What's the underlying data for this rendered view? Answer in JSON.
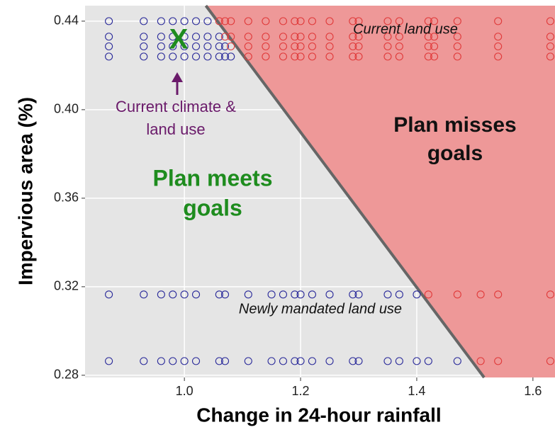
{
  "chart_data": {
    "type": "scatter",
    "x_label": "Change in 24-hour rainfall",
    "y_label": "Impervious area (%)",
    "xlim": [
      0.829,
      1.638
    ],
    "ylim": [
      0.279,
      0.447
    ],
    "xticks": [
      {
        "value": 1.0,
        "label": "1.0"
      },
      1.2,
      1.4,
      1.6
    ],
    "yticks": [
      0.28,
      0.32,
      0.36,
      {
        "value": 0.4,
        "label": "0.40"
      },
      0.44
    ],
    "grid": true,
    "boundary": {
      "x": [
        1.037,
        1.516
      ],
      "y": [
        0.447,
        0.279
      ],
      "color": "#666666",
      "region_color": "#ee9898"
    },
    "annotations": [
      "Current land use",
      "X",
      [
        "Current climate &",
        "land use"
      ],
      [
        "Plan misses",
        "goals"
      ],
      [
        "Plan meets",
        "goals"
      ],
      "Newly mandated land use"
    ],
    "series": [
      {
        "color": "#2a2a9a",
        "x": [
          0.87,
          0.93,
          0.96,
          0.98,
          1.0,
          1.02,
          1.04
        ],
        "y": [
          0.44,
          0.44,
          0.44,
          0.44,
          0.44,
          0.44,
          0.44
        ]
      },
      {
        "color": "#e03a3a",
        "x": [
          1.06,
          1.07,
          1.08,
          1.11,
          1.14,
          1.17,
          1.19,
          1.2,
          1.22,
          1.25,
          1.29,
          1.3,
          1.35,
          1.37,
          1.42,
          1.43,
          1.47,
          1.54,
          1.63
        ],
        "y": [
          0.44,
          0.44,
          0.44,
          0.44,
          0.44,
          0.44,
          0.44,
          0.44,
          0.44,
          0.44,
          0.44,
          0.44,
          0.44,
          0.44,
          0.44,
          0.44,
          0.44,
          0.44,
          0.44
        ]
      },
      {
        "color": "#2a2a9a",
        "x": [
          0.87,
          0.93,
          0.96,
          0.98,
          1.0,
          1.02,
          1.04,
          1.06
        ],
        "y": [
          0.433,
          0.433,
          0.433,
          0.433,
          0.433,
          0.433,
          0.433,
          0.433
        ]
      },
      {
        "color": "#e03a3a",
        "x": [
          1.07,
          1.08,
          1.11,
          1.14,
          1.17,
          1.19,
          1.2,
          1.22,
          1.25,
          1.29,
          1.3,
          1.35,
          1.37,
          1.42,
          1.43,
          1.47,
          1.54,
          1.63
        ],
        "y": [
          0.433,
          0.433,
          0.433,
          0.433,
          0.433,
          0.433,
          0.433,
          0.433,
          0.433,
          0.433,
          0.433,
          0.433,
          0.433,
          0.433,
          0.433,
          0.433,
          0.433,
          0.433
        ]
      },
      {
        "color": "#2a2a9a",
        "x": [
          0.87,
          0.93,
          0.96,
          0.98,
          1.0,
          1.02,
          1.04,
          1.06,
          1.07
        ],
        "y": [
          0.4286,
          0.4286,
          0.4286,
          0.4286,
          0.4286,
          0.4286,
          0.4286,
          0.4286,
          0.4286
        ]
      },
      {
        "color": "#e03a3a",
        "x": [
          1.08,
          1.11,
          1.14,
          1.17,
          1.19,
          1.2,
          1.22,
          1.25,
          1.29,
          1.3,
          1.35,
          1.37,
          1.42,
          1.43,
          1.47,
          1.54,
          1.63
        ],
        "y": [
          0.4286,
          0.4286,
          0.4286,
          0.4286,
          0.4286,
          0.4286,
          0.4286,
          0.4286,
          0.4286,
          0.4286,
          0.4286,
          0.4286,
          0.4286,
          0.4286,
          0.4286,
          0.4286,
          0.4286
        ]
      },
      {
        "color": "#2a2a9a",
        "x": [
          0.87,
          0.93,
          0.96,
          0.98,
          1.0,
          1.02,
          1.04,
          1.06,
          1.07,
          1.08
        ],
        "y": [
          0.424,
          0.424,
          0.424,
          0.424,
          0.424,
          0.424,
          0.424,
          0.424,
          0.424,
          0.424
        ]
      },
      {
        "color": "#e03a3a",
        "x": [
          1.11,
          1.14,
          1.17,
          1.19,
          1.2,
          1.22,
          1.25,
          1.29,
          1.3,
          1.35,
          1.37,
          1.42,
          1.43,
          1.47,
          1.54,
          1.63
        ],
        "y": [
          0.424,
          0.424,
          0.424,
          0.424,
          0.424,
          0.424,
          0.424,
          0.424,
          0.424,
          0.424,
          0.424,
          0.424,
          0.424,
          0.424,
          0.424,
          0.424
        ]
      },
      {
        "color": "#2a2a9a",
        "x": [
          0.87,
          0.93,
          0.96,
          0.98,
          1.0,
          1.02,
          1.06,
          1.07,
          1.11,
          1.15,
          1.17,
          1.19,
          1.2,
          1.22,
          1.25,
          1.29,
          1.3,
          1.35,
          1.37,
          1.4
        ],
        "y": [
          0.3165,
          0.3165,
          0.3165,
          0.3165,
          0.3165,
          0.3165,
          0.3165,
          0.3165,
          0.3165,
          0.3165,
          0.3165,
          0.3165,
          0.3165,
          0.3165,
          0.3165,
          0.3165,
          0.3165,
          0.3165,
          0.3165,
          0.3165
        ]
      },
      {
        "color": "#e03a3a",
        "x": [
          1.42,
          1.47,
          1.51,
          1.54,
          1.63
        ],
        "y": [
          0.3165,
          0.3165,
          0.3165,
          0.3165,
          0.3165
        ]
      },
      {
        "color": "#2a2a9a",
        "x": [
          0.87,
          0.93,
          0.96,
          0.98,
          1.0,
          1.02,
          1.06,
          1.07,
          1.11,
          1.15,
          1.17,
          1.19,
          1.2,
          1.22,
          1.25,
          1.29,
          1.3,
          1.35,
          1.37,
          1.4,
          1.42,
          1.47
        ],
        "y": [
          0.2864,
          0.2864,
          0.2864,
          0.2864,
          0.2864,
          0.2864,
          0.2864,
          0.2864,
          0.2864,
          0.2864,
          0.2864,
          0.2864,
          0.2864,
          0.2864,
          0.2864,
          0.2864,
          0.2864,
          0.2864,
          0.2864,
          0.2864,
          0.2864,
          0.2864
        ]
      },
      {
        "color": "#e03a3a",
        "x": [
          1.51,
          1.54,
          1.63
        ],
        "y": [
          0.2864,
          0.2864,
          0.2864
        ]
      }
    ]
  }
}
